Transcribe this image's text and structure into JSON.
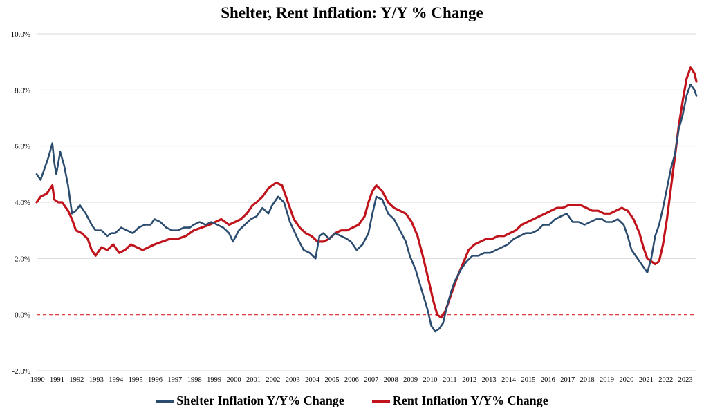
{
  "chart_data": {
    "type": "line",
    "title": "Shelter, Rent Inflation: Y/Y % Change",
    "ylim": [
      -2.0,
      10.0
    ],
    "yticks": [
      10.0,
      8.0,
      6.0,
      4.0,
      2.0,
      0.0,
      -2.0
    ],
    "ytick_labels": [
      "10.0%",
      "8.0%",
      "6.0%",
      "4.0%",
      "2.0%",
      "0.0%",
      "-2.0%"
    ],
    "xlim": [
      1990.0,
      2023.6
    ],
    "xtick_labels": [
      "1990",
      "1991",
      "1992",
      "1993",
      "1994",
      "1995",
      "1996",
      "1997",
      "1998",
      "1999",
      "2000",
      "2001",
      "2002",
      "2003",
      "2004",
      "2005",
      "2006",
      "2007",
      "2008",
      "2009",
      "2010",
      "2011",
      "2012",
      "2013",
      "2014",
      "2015",
      "2016",
      "2017",
      "2018",
      "2019",
      "2020",
      "2021",
      "2022",
      "2023"
    ],
    "grid": "horizontal",
    "reference_line": {
      "y": 0.0,
      "color": "#d9252a",
      "style": "dashed"
    },
    "legend_position": "bottom",
    "series": [
      {
        "name": "Shelter Inflation Y/Y% Change",
        "color": "#2b4c6f",
        "x": [
          1990.0,
          1990.2,
          1990.4,
          1990.6,
          1990.8,
          1990.9,
          1991.0,
          1991.2,
          1991.4,
          1991.6,
          1991.8,
          1992.0,
          1992.2,
          1992.5,
          1992.8,
          1993.0,
          1993.3,
          1993.6,
          1993.8,
          1994.0,
          1994.3,
          1994.6,
          1994.9,
          1995.2,
          1995.5,
          1995.8,
          1996.0,
          1996.3,
          1996.6,
          1996.9,
          1997.2,
          1997.5,
          1997.8,
          1998.0,
          1998.3,
          1998.6,
          1998.9,
          1999.2,
          1999.5,
          1999.8,
          2000.0,
          2000.3,
          2000.6,
          2000.9,
          2001.2,
          2001.5,
          2001.8,
          2002.0,
          2002.3,
          2002.6,
          2002.9,
          2003.1,
          2003.3,
          2003.6,
          2003.9,
          2004.2,
          2004.4,
          2004.6,
          2004.9,
          2005.2,
          2005.5,
          2005.8,
          2006.0,
          2006.3,
          2006.6,
          2006.9,
          2007.1,
          2007.3,
          2007.6,
          2007.9,
          2008.2,
          2008.5,
          2008.8,
          2009.0,
          2009.3,
          2009.6,
          2009.9,
          2010.1,
          2010.3,
          2010.5,
          2010.7,
          2010.9,
          2011.1,
          2011.3,
          2011.6,
          2011.9,
          2012.2,
          2012.5,
          2012.8,
          2013.1,
          2013.4,
          2013.7,
          2014.0,
          2014.3,
          2014.6,
          2014.9,
          2015.2,
          2015.5,
          2015.8,
          2016.1,
          2016.4,
          2016.7,
          2017.0,
          2017.3,
          2017.6,
          2017.9,
          2018.2,
          2018.5,
          2018.8,
          2019.0,
          2019.3,
          2019.6,
          2019.9,
          2020.1,
          2020.3,
          2020.6,
          2020.9,
          2021.1,
          2021.3,
          2021.5,
          2021.7,
          2021.9,
          2022.1,
          2022.3,
          2022.5,
          2022.7,
          2022.9,
          2023.1,
          2023.3,
          2023.5,
          2023.6
        ],
        "values": [
          5.0,
          4.8,
          5.2,
          5.6,
          6.1,
          5.4,
          5.0,
          5.8,
          5.3,
          4.6,
          3.6,
          3.7,
          3.9,
          3.6,
          3.2,
          3.0,
          3.0,
          2.8,
          2.9,
          2.9,
          3.1,
          3.0,
          2.9,
          3.1,
          3.2,
          3.2,
          3.4,
          3.3,
          3.1,
          3.0,
          3.0,
          3.1,
          3.1,
          3.2,
          3.3,
          3.2,
          3.3,
          3.2,
          3.1,
          2.9,
          2.6,
          3.0,
          3.2,
          3.4,
          3.5,
          3.8,
          3.6,
          3.9,
          4.2,
          4.0,
          3.3,
          3.0,
          2.7,
          2.3,
          2.2,
          2.0,
          2.8,
          2.9,
          2.7,
          2.9,
          2.8,
          2.7,
          2.6,
          2.3,
          2.5,
          2.9,
          3.6,
          4.2,
          4.1,
          3.6,
          3.4,
          3.0,
          2.6,
          2.1,
          1.6,
          0.9,
          0.2,
          -0.4,
          -0.6,
          -0.5,
          -0.3,
          0.3,
          0.8,
          1.2,
          1.6,
          1.9,
          2.1,
          2.1,
          2.2,
          2.2,
          2.3,
          2.4,
          2.5,
          2.7,
          2.8,
          2.9,
          2.9,
          3.0,
          3.2,
          3.2,
          3.4,
          3.5,
          3.6,
          3.3,
          3.3,
          3.2,
          3.3,
          3.4,
          3.4,
          3.3,
          3.3,
          3.4,
          3.2,
          2.8,
          2.3,
          2.0,
          1.7,
          1.5,
          2.0,
          2.8,
          3.2,
          3.8,
          4.5,
          5.2,
          5.7,
          6.6,
          7.1,
          7.8,
          8.2,
          8.0,
          7.8
        ]
      },
      {
        "name": "Rent Inflation Y/Y% Change",
        "color": "#c0131b",
        "x": [
          1990.0,
          1990.2,
          1990.5,
          1990.8,
          1990.9,
          1991.1,
          1991.3,
          1991.6,
          1991.8,
          1992.0,
          1992.3,
          1992.6,
          1992.8,
          1993.0,
          1993.3,
          1993.6,
          1993.9,
          1994.2,
          1994.5,
          1994.8,
          1995.1,
          1995.4,
          1995.7,
          1996.0,
          1996.4,
          1996.8,
          1997.2,
          1997.6,
          1998.0,
          1998.4,
          1998.8,
          1999.1,
          1999.4,
          1999.8,
          2000.1,
          2000.4,
          2000.7,
          2001.0,
          2001.2,
          2001.5,
          2001.8,
          2002.0,
          2002.2,
          2002.5,
          2002.8,
          2003.1,
          2003.4,
          2003.7,
          2004.0,
          2004.3,
          2004.6,
          2004.9,
          2005.2,
          2005.5,
          2005.8,
          2006.1,
          2006.4,
          2006.7,
          2006.9,
          2007.1,
          2007.3,
          2007.6,
          2007.9,
          2008.2,
          2008.5,
          2008.8,
          2009.1,
          2009.4,
          2009.7,
          2010.0,
          2010.2,
          2010.4,
          2010.6,
          2010.8,
          2011.0,
          2011.2,
          2011.4,
          2011.7,
          2012.0,
          2012.3,
          2012.6,
          2012.9,
          2013.2,
          2013.5,
          2013.8,
          2014.1,
          2014.4,
          2014.7,
          2015.0,
          2015.3,
          2015.6,
          2015.9,
          2016.2,
          2016.5,
          2016.8,
          2017.1,
          2017.4,
          2017.7,
          2018.0,
          2018.3,
          2018.6,
          2018.9,
          2019.2,
          2019.5,
          2019.8,
          2020.1,
          2020.4,
          2020.7,
          2020.9,
          2021.1,
          2021.3,
          2021.5,
          2021.7,
          2021.9,
          2022.1,
          2022.3,
          2022.5,
          2022.7,
          2022.9,
          2023.1,
          2023.3,
          2023.5,
          2023.6
        ],
        "values": [
          4.0,
          4.2,
          4.3,
          4.6,
          4.1,
          4.0,
          4.0,
          3.7,
          3.4,
          3.0,
          2.9,
          2.7,
          2.3,
          2.1,
          2.4,
          2.3,
          2.5,
          2.2,
          2.3,
          2.5,
          2.4,
          2.3,
          2.4,
          2.5,
          2.6,
          2.7,
          2.7,
          2.8,
          3.0,
          3.1,
          3.2,
          3.3,
          3.4,
          3.2,
          3.3,
          3.4,
          3.6,
          3.9,
          4.0,
          4.2,
          4.5,
          4.6,
          4.7,
          4.6,
          4.0,
          3.4,
          3.1,
          2.9,
          2.8,
          2.6,
          2.6,
          2.7,
          2.9,
          3.0,
          3.0,
          3.1,
          3.2,
          3.5,
          4.0,
          4.4,
          4.6,
          4.4,
          4.0,
          3.8,
          3.7,
          3.6,
          3.3,
          2.8,
          2.0,
          1.1,
          0.5,
          0.0,
          -0.1,
          0.1,
          0.5,
          0.9,
          1.3,
          1.8,
          2.3,
          2.5,
          2.6,
          2.7,
          2.7,
          2.8,
          2.8,
          2.9,
          3.0,
          3.2,
          3.3,
          3.4,
          3.5,
          3.6,
          3.7,
          3.8,
          3.8,
          3.9,
          3.9,
          3.9,
          3.8,
          3.7,
          3.7,
          3.6,
          3.6,
          3.7,
          3.8,
          3.7,
          3.4,
          2.9,
          2.4,
          2.0,
          1.9,
          1.8,
          1.9,
          2.5,
          3.4,
          4.5,
          5.6,
          6.7,
          7.6,
          8.4,
          8.8,
          8.6,
          8.3
        ]
      }
    ]
  }
}
